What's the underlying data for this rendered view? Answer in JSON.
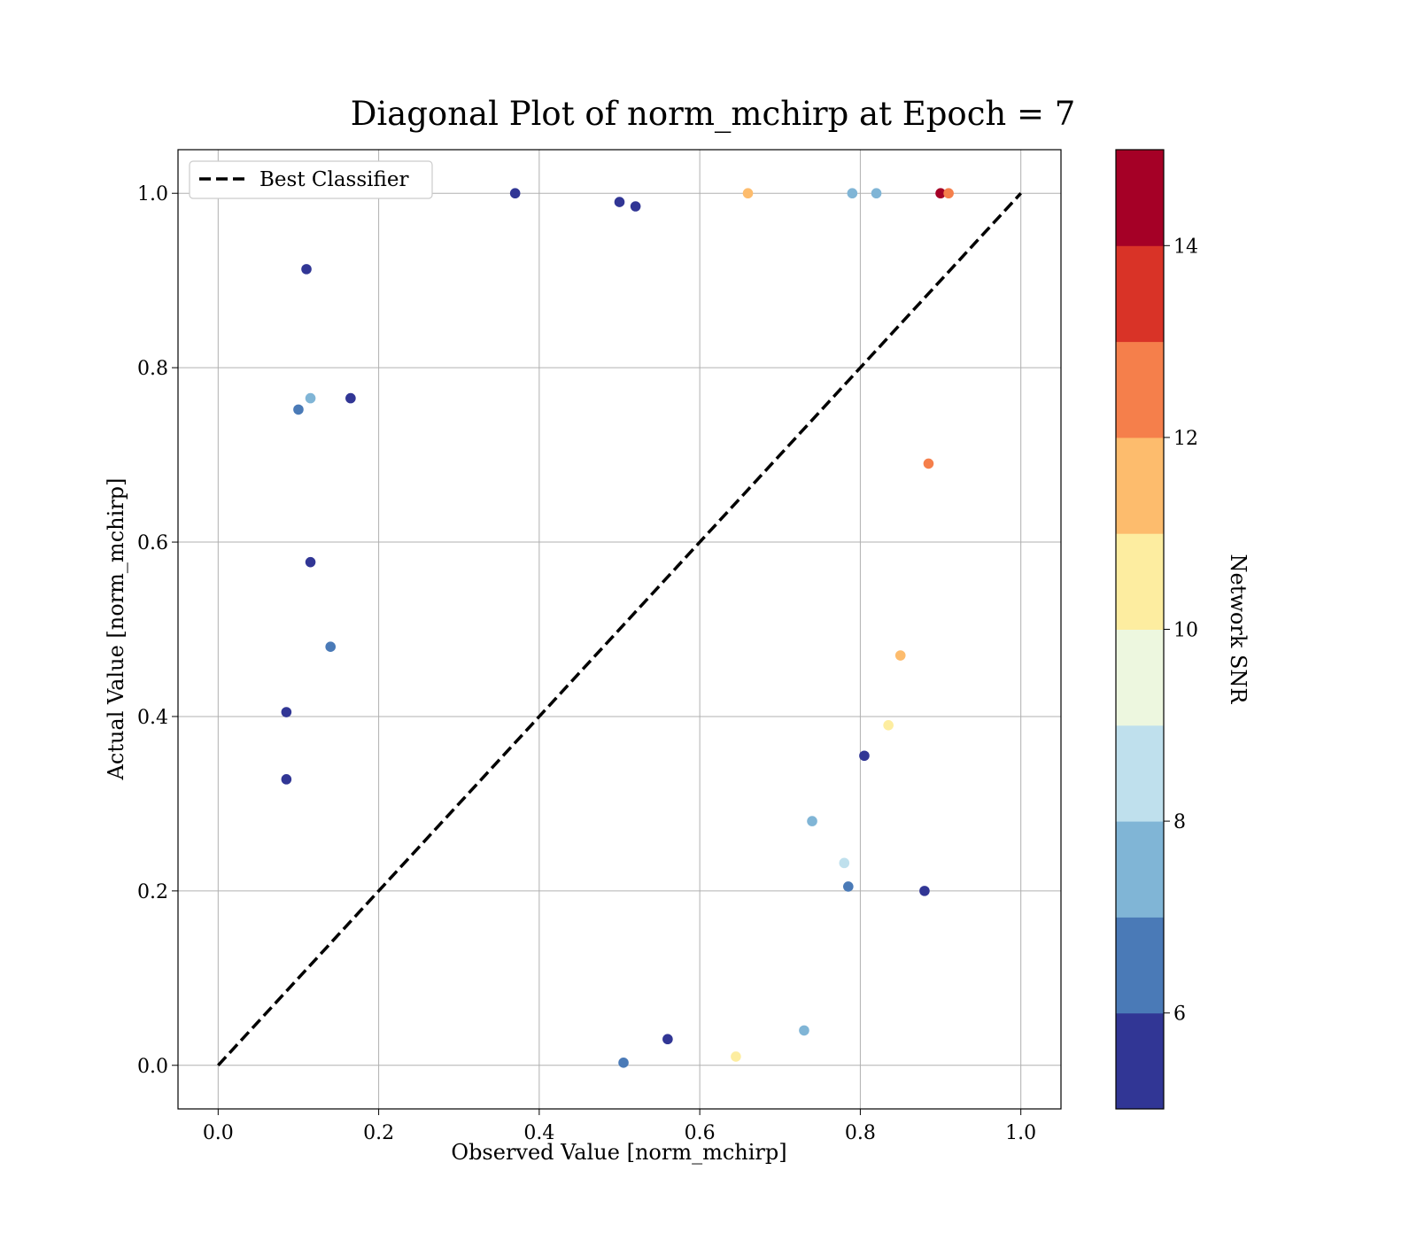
{
  "chart_data": {
    "type": "scatter",
    "title": "Diagonal Plot of norm_mchirp at Epoch = 7",
    "xlabel": "Observed Value [norm_mchirp]",
    "ylabel": "Actual Value [norm_mchirp]",
    "xlim": [
      -0.05,
      1.05
    ],
    "ylim": [
      -0.05,
      1.05
    ],
    "grid": true,
    "x_ticks": [
      "0.0",
      "0.2",
      "0.4",
      "0.6",
      "0.8",
      "1.0"
    ],
    "y_ticks": [
      "0.0",
      "0.2",
      "0.4",
      "0.6",
      "0.8",
      "1.0"
    ],
    "legend": {
      "placement": "upper-left",
      "entries": [
        {
          "label": "Best Classifier",
          "style": "black dashed line"
        }
      ]
    },
    "reference_line": {
      "name": "Best Classifier",
      "x": [
        0.0,
        1.0
      ],
      "y": [
        0.0,
        1.0
      ]
    },
    "colorbar": {
      "label": "Network SNR",
      "range": [
        5,
        15
      ],
      "ticks": [
        "6",
        "8",
        "10",
        "12",
        "14"
      ],
      "bins": [
        {
          "from": 5,
          "to": 6,
          "color": "#313695"
        },
        {
          "from": 6,
          "to": 7,
          "color": "#4a7ab7"
        },
        {
          "from": 7,
          "to": 8,
          "color": "#80b5d6"
        },
        {
          "from": 8,
          "to": 9,
          "color": "#bfe0ed"
        },
        {
          "from": 9,
          "to": 10,
          "color": "#edf7df"
        },
        {
          "from": 10,
          "to": 11,
          "color": "#fdeda0"
        },
        {
          "from": 11,
          "to": 12,
          "color": "#fdbc6d"
        },
        {
          "from": 12,
          "to": 13,
          "color": "#f57f4b"
        },
        {
          "from": 13,
          "to": 14,
          "color": "#d93327"
        },
        {
          "from": 14,
          "to": 15,
          "color": "#a50026"
        }
      ]
    },
    "series": [
      {
        "points_description_note_removed": true,
        "points": [
          [
            0.11,
            0.913,
            5.3
          ],
          [
            0.1,
            0.752,
            6.2
          ],
          [
            0.115,
            0.765,
            7.4
          ],
          [
            0.165,
            0.765,
            5.4
          ],
          [
            0.085,
            0.405,
            5.2
          ],
          [
            0.085,
            0.328,
            5.6
          ],
          [
            0.115,
            0.577,
            5.5
          ],
          [
            0.14,
            0.48,
            6.4
          ],
          [
            0.37,
            1.0,
            5.3
          ],
          [
            0.5,
            0.99,
            5.5
          ],
          [
            0.52,
            0.985,
            5.6
          ],
          [
            0.66,
            1.0,
            11.0
          ],
          [
            0.79,
            1.0,
            7.3
          ],
          [
            0.82,
            1.0,
            7.8
          ],
          [
            0.9,
            1.0,
            14.5
          ],
          [
            0.91,
            1.0,
            12.0
          ],
          [
            0.645,
            0.01,
            10.0
          ],
          [
            0.505,
            0.003,
            6.6
          ],
          [
            0.56,
            0.03,
            5.6
          ],
          [
            0.73,
            0.04,
            7.4
          ],
          [
            0.785,
            0.205,
            6.3
          ],
          [
            0.88,
            0.2,
            5.8
          ],
          [
            0.805,
            0.355,
            5.2
          ],
          [
            0.85,
            0.47,
            11.0
          ],
          [
            0.835,
            0.39,
            10.4
          ],
          [
            0.885,
            0.69,
            12.6
          ],
          [
            0.78,
            0.232,
            8.3
          ],
          [
            0.74,
            0.28,
            7.6
          ]
        ]
      }
    ]
  }
}
